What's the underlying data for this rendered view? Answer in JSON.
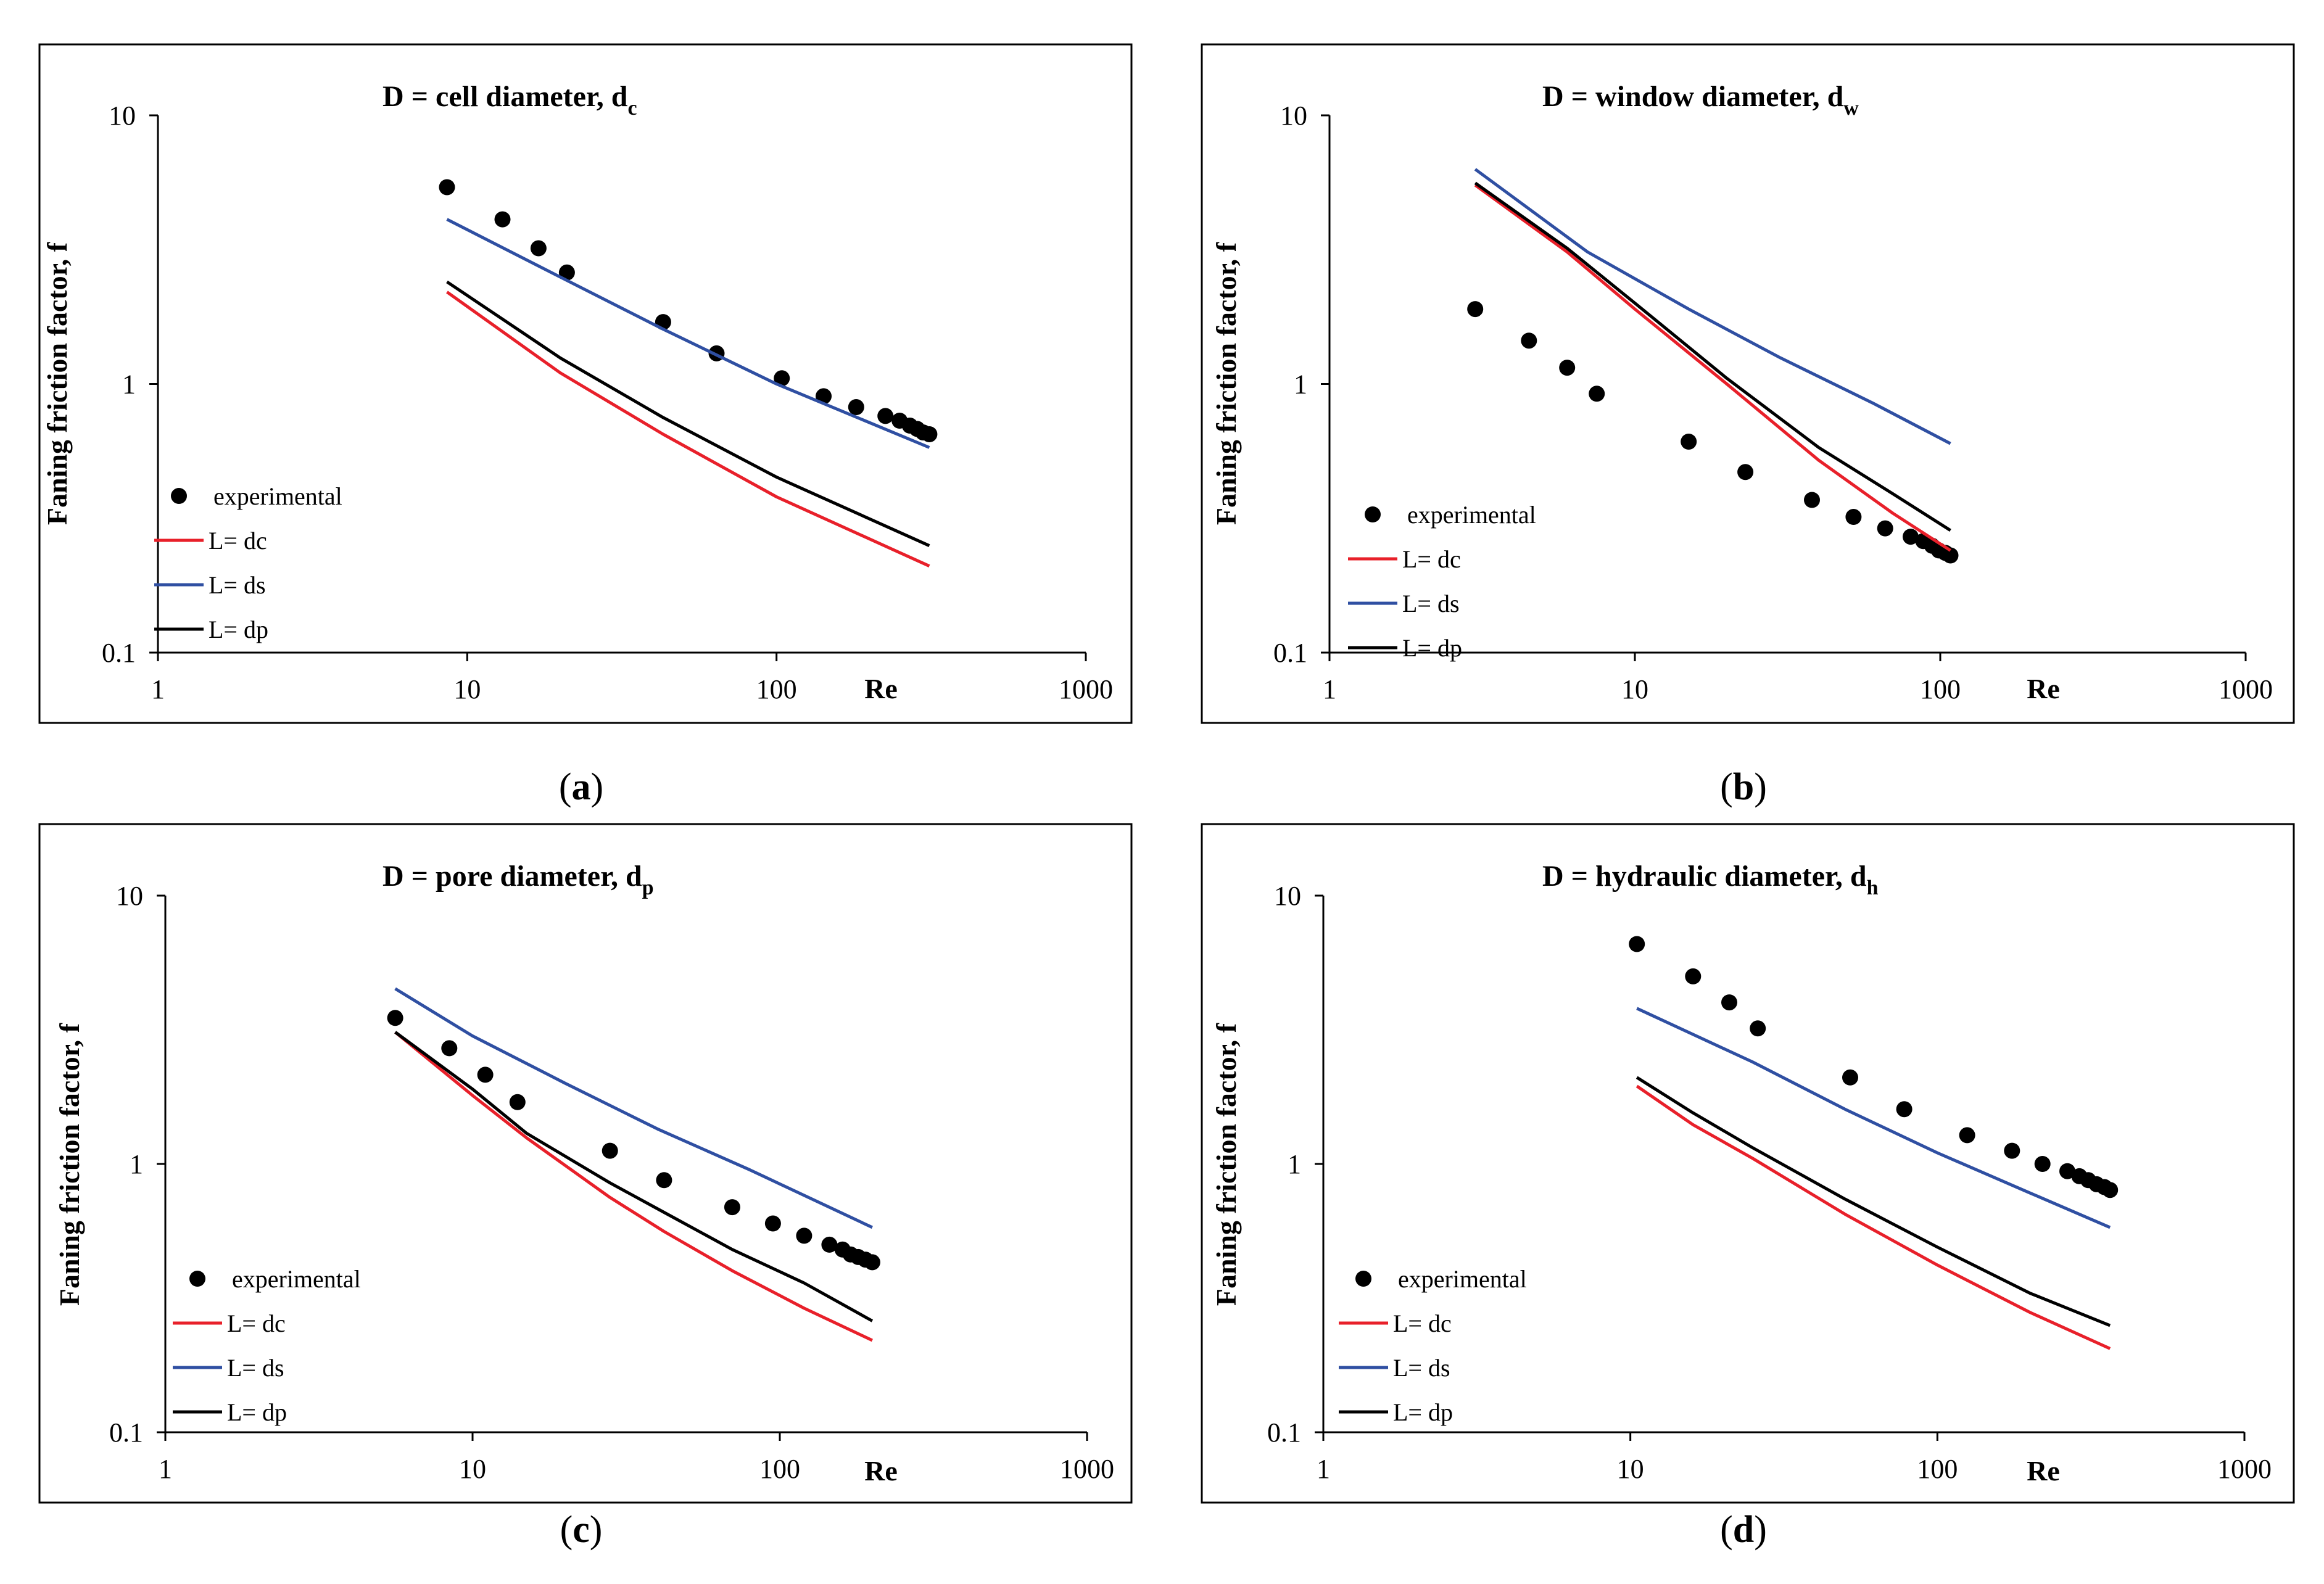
{
  "figure": {
    "caption_open": "(",
    "caption_close": ")",
    "colors": {
      "experimental": "#000000",
      "L_dc": "#e8202a",
      "L_ds": "#2f4fa2",
      "L_dp": "#000000"
    }
  },
  "chart_data": [
    {
      "panel": "a",
      "type": "scatter",
      "scale": "log-log",
      "title": "D = cell diameter, d",
      "title_subscript": "c",
      "xlabel": "Re",
      "ylabel": "Faning friction factor, f",
      "xlim": [
        1,
        1000
      ],
      "ylim": [
        0.1,
        10
      ],
      "x_ticks": [
        "1",
        "10",
        "100",
        "1000"
      ],
      "y_ticks": [
        "0.1",
        "1",
        "10"
      ],
      "legend_position": "bottom-left",
      "series": [
        {
          "name": "experimental",
          "kind": "markers",
          "x": [
            8.6,
            13,
            17,
            21,
            43,
            64,
            104,
            142,
            181,
            225,
            250,
            270,
            285,
            298,
            312
          ],
          "y": [
            5.4,
            4.1,
            3.2,
            2.6,
            1.7,
            1.3,
            1.05,
            0.9,
            0.82,
            0.76,
            0.73,
            0.7,
            0.68,
            0.66,
            0.65
          ]
        },
        {
          "name": "L= dc",
          "kind": "line",
          "x": [
            8.6,
            20,
            43,
            100,
            312
          ],
          "y": [
            2.2,
            1.1,
            0.65,
            0.38,
            0.21
          ]
        },
        {
          "name": "L= ds",
          "kind": "line",
          "x": [
            8.6,
            20,
            43,
            100,
            312
          ],
          "y": [
            4.1,
            2.5,
            1.6,
            1.0,
            0.58
          ]
        },
        {
          "name": "L= dp",
          "kind": "line",
          "x": [
            8.6,
            20,
            43,
            100,
            312
          ],
          "y": [
            2.4,
            1.25,
            0.75,
            0.45,
            0.25
          ]
        }
      ]
    },
    {
      "panel": "b",
      "type": "scatter",
      "scale": "log-log",
      "title": "D = window diameter, d",
      "title_subscript": "w",
      "xlabel": "Re",
      "ylabel": "Faning friction factor, f",
      "xlim": [
        1,
        1000
      ],
      "ylim": [
        0.1,
        10
      ],
      "x_ticks": [
        "1",
        "10",
        "100",
        "1000"
      ],
      "y_ticks": [
        "0.1",
        "1",
        "10"
      ],
      "legend_position": "bottom-left",
      "series": [
        {
          "name": "experimental",
          "kind": "markers",
          "x": [
            3,
            4.5,
            6,
            7.5,
            15,
            23,
            38,
            52,
            66,
            80,
            88,
            94,
            99,
            104,
            108
          ],
          "y": [
            1.9,
            1.45,
            1.15,
            0.92,
            0.61,
            0.47,
            0.37,
            0.32,
            0.29,
            0.27,
            0.26,
            0.25,
            0.24,
            0.235,
            0.23
          ]
        },
        {
          "name": "L= dc",
          "kind": "line",
          "x": [
            3,
            6,
            10,
            20,
            40,
            70,
            108
          ],
          "y": [
            5.5,
            3.1,
            1.9,
            1.0,
            0.52,
            0.33,
            0.24
          ]
        },
        {
          "name": "L= ds",
          "kind": "line",
          "x": [
            3,
            7,
            15,
            30,
            60,
            108
          ],
          "y": [
            6.3,
            3.1,
            1.9,
            1.25,
            0.85,
            0.6
          ]
        },
        {
          "name": "L= dp",
          "kind": "line",
          "x": [
            3,
            6,
            10,
            20,
            40,
            70,
            108
          ],
          "y": [
            5.6,
            3.2,
            2.0,
            1.05,
            0.58,
            0.39,
            0.285
          ]
        }
      ]
    },
    {
      "panel": "c",
      "type": "scatter",
      "scale": "log-log",
      "title": "D = pore diameter, d",
      "title_subscript": "p",
      "xlabel": "Re",
      "ylabel": "Faning friction factor, f",
      "xlim": [
        1,
        1000
      ],
      "ylim": [
        0.1,
        10
      ],
      "x_ticks": [
        "1",
        "10",
        "100",
        "1000"
      ],
      "y_ticks": [
        "0.1",
        "1",
        "10"
      ],
      "legend_position": "bottom-left",
      "series": [
        {
          "name": "experimental",
          "kind": "markers",
          "x": [
            5.6,
            8.4,
            11,
            14,
            28,
            42,
            70,
            95,
            120,
            145,
            160,
            170,
            180,
            190,
            200
          ],
          "y": [
            3.5,
            2.7,
            2.15,
            1.7,
            1.12,
            0.87,
            0.69,
            0.6,
            0.54,
            0.5,
            0.48,
            0.46,
            0.45,
            0.44,
            0.43
          ]
        },
        {
          "name": "L= dc",
          "kind": "line",
          "x": [
            5.6,
            10,
            15,
            28,
            42,
            70,
            120,
            200
          ],
          "y": [
            3.1,
            1.8,
            1.25,
            0.75,
            0.56,
            0.4,
            0.29,
            0.22
          ]
        },
        {
          "name": "L= ds",
          "kind": "line",
          "x": [
            5.6,
            10,
            20,
            40,
            80,
            200
          ],
          "y": [
            4.5,
            3.0,
            2.0,
            1.35,
            0.95,
            0.58
          ]
        },
        {
          "name": "L= dp",
          "kind": "line",
          "x": [
            5.6,
            10,
            15,
            28,
            42,
            70,
            120,
            200
          ],
          "y": [
            3.1,
            1.9,
            1.3,
            0.85,
            0.66,
            0.48,
            0.36,
            0.26
          ]
        }
      ]
    },
    {
      "panel": "d",
      "type": "scatter",
      "scale": "log-log",
      "title": "D = hydraulic diameter, d",
      "title_subscript": "h",
      "xlabel": "Re",
      "ylabel": "Faning friction factor, f",
      "xlim": [
        1,
        1000
      ],
      "ylim": [
        0.1,
        10
      ],
      "x_ticks": [
        "1",
        "10",
        "100",
        "1000"
      ],
      "y_ticks": [
        "0.1",
        "1",
        "10"
      ],
      "legend_position": "bottom-left",
      "series": [
        {
          "name": "experimental",
          "kind": "markers",
          "x": [
            10.5,
            16,
            21,
            26,
            52,
            78,
            125,
            175,
            220,
            265,
            290,
            310,
            330,
            350,
            365
          ],
          "y": [
            6.6,
            5.0,
            4.0,
            3.2,
            2.1,
            1.6,
            1.28,
            1.12,
            1.0,
            0.94,
            0.9,
            0.87,
            0.84,
            0.82,
            0.8
          ]
        },
        {
          "name": "L= dc",
          "kind": "line",
          "x": [
            10.5,
            16,
            25,
            50,
            100,
            200,
            365
          ],
          "y": [
            1.95,
            1.4,
            1.05,
            0.65,
            0.42,
            0.28,
            0.205
          ]
        },
        {
          "name": "L= ds",
          "kind": "line",
          "x": [
            10.5,
            25,
            50,
            100,
            200,
            365
          ],
          "y": [
            3.8,
            2.4,
            1.6,
            1.1,
            0.78,
            0.58
          ]
        },
        {
          "name": "L= dp",
          "kind": "line",
          "x": [
            10.5,
            16,
            25,
            50,
            100,
            200,
            365
          ],
          "y": [
            2.1,
            1.55,
            1.15,
            0.74,
            0.49,
            0.33,
            0.25
          ]
        }
      ]
    }
  ]
}
